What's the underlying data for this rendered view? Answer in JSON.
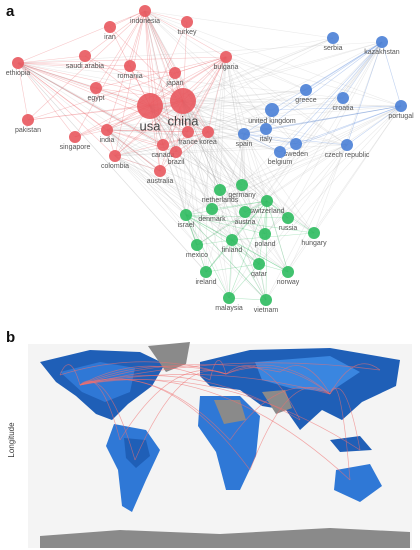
{
  "panels": [
    {
      "label": "a",
      "clusters": [
        {
          "color": "#e8585e",
          "nodes": [
            {
              "label": "indonesia"
            },
            {
              "label": "turkey"
            },
            {
              "label": "iran"
            },
            {
              "label": "ethiopia"
            },
            {
              "label": "saudi arabia"
            },
            {
              "label": "romania"
            },
            {
              "label": "bulgaria"
            },
            {
              "label": "japan"
            },
            {
              "label": "egypt"
            },
            {
              "label": "usa"
            },
            {
              "label": "china"
            },
            {
              "label": "pakistan"
            },
            {
              "label": "india"
            },
            {
              "label": "singapore"
            },
            {
              "label": "france"
            },
            {
              "label": "korea"
            },
            {
              "label": "canada"
            },
            {
              "label": "brazil"
            },
            {
              "label": "colombia"
            },
            {
              "label": "australia"
            }
          ]
        },
        {
          "color": "#4a7fd6",
          "nodes": [
            {
              "label": "serbia"
            },
            {
              "label": "kazakhstan"
            },
            {
              "label": "greece"
            },
            {
              "label": "croatia"
            },
            {
              "label": "portugal"
            },
            {
              "label": "united kingdom"
            },
            {
              "label": "italy"
            },
            {
              "label": "spain"
            },
            {
              "label": "sweden"
            },
            {
              "label": "belgium"
            },
            {
              "label": "czech republic"
            }
          ]
        },
        {
          "color": "#2dbb5f",
          "nodes": [
            {
              "label": "germany"
            },
            {
              "label": "netherlands"
            },
            {
              "label": "switzerland"
            },
            {
              "label": "denmark"
            },
            {
              "label": "austria"
            },
            {
              "label": "israel"
            },
            {
              "label": "russia"
            },
            {
              "label": "poland"
            },
            {
              "label": "finland"
            },
            {
              "label": "mexico"
            },
            {
              "label": "hungary"
            },
            {
              "label": "qatar"
            },
            {
              "label": "ireland"
            },
            {
              "label": "norway"
            },
            {
              "label": "malaysia"
            },
            {
              "label": "vietnam"
            }
          ]
        }
      ]
    },
    {
      "label": "b",
      "axis_label": "Longitude"
    }
  ]
}
